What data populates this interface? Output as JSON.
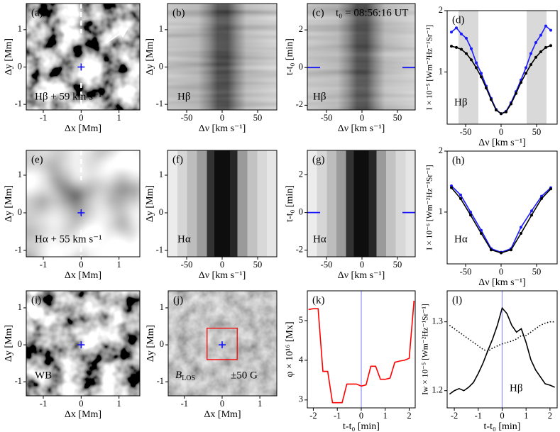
{
  "chart_data": [
    {
      "type": "image",
      "image": "granulation",
      "label": "(a)",
      "xlabel": "Δx [Mm]",
      "ylabel": "Δy [Mm]",
      "xlim": [
        -1.45,
        1.55
      ],
      "ylim": [
        -1.15,
        1.7
      ],
      "xticks": [
        -1,
        0,
        1
      ],
      "yticks": [
        -1,
        0,
        1
      ],
      "annotations": [
        "Hβ + 59 km s⁻¹"
      ],
      "marker": [
        0,
        0
      ],
      "guide": true,
      "arrow": true
    },
    {
      "type": "image",
      "image": "spectrum_hb",
      "label": "(b)",
      "xlabel": "Δν [km s⁻¹]",
      "ylabel": "Δy [Mm]",
      "xlim": [
        -77,
        77
      ],
      "ylim": [
        -1.15,
        1.7
      ],
      "xticks": [
        -50,
        0,
        50
      ],
      "yticks": [
        -1,
        0,
        1
      ],
      "annotations": [
        "Hβ"
      ]
    },
    {
      "type": "image",
      "image": "spectrum_hb",
      "label": "(c)",
      "xlabel": "Δν [km s⁻¹]",
      "ylabel": "t-t₀ [min]",
      "xlim": [
        -77,
        75
      ],
      "ylim": [
        -2.25,
        3.4
      ],
      "xticks": [
        -50,
        0,
        50
      ],
      "yticks": [
        -2,
        0,
        2
      ],
      "annotations": [
        "t₀ = 08:56:16 UT",
        "Hβ"
      ],
      "tmark": 0
    },
    {
      "type": "line",
      "label": "(d)",
      "xlabel": "Δν [km s⁻¹]",
      "ylabel": "I × 10⁻⁵ [Wm⁻²Hz⁻¹Sr⁻¹]",
      "xlim": [
        -76,
        79
      ],
      "ylim": [
        0.15,
        2.0
      ],
      "xticks": [
        -50,
        0,
        50
      ],
      "yticks": [
        1,
        2
      ],
      "annotations": [
        "Hβ"
      ],
      "spans": [
        [
          -60,
          -32
        ],
        [
          36,
          64
        ]
      ],
      "markers": true,
      "x": [
        -70,
        -63,
        -56,
        -49,
        -42,
        -35,
        -28,
        -21,
        -14,
        -7,
        0,
        7,
        14,
        21,
        28,
        35,
        42,
        49,
        56,
        63,
        70
      ],
      "series": [
        {
          "color": "#1a1aff",
          "values": [
            1.65,
            1.72,
            1.62,
            1.55,
            1.38,
            1.15,
            0.98,
            0.77,
            0.57,
            0.39,
            0.32,
            0.36,
            0.5,
            0.68,
            0.87,
            1.07,
            1.3,
            1.48,
            1.6,
            1.75,
            1.68
          ]
        },
        {
          "color": "#000000",
          "values": [
            1.42,
            1.4,
            1.37,
            1.3,
            1.2,
            1.07,
            0.92,
            0.74,
            0.55,
            0.38,
            0.32,
            0.35,
            0.48,
            0.65,
            0.83,
            0.98,
            1.12,
            1.24,
            1.33,
            1.4,
            1.43
          ]
        }
      ]
    },
    {
      "type": "image",
      "image": "smooth",
      "label": "(e)",
      "xlabel": "Δx [Mm]",
      "ylabel": "Δy [Mm]",
      "xlim": [
        -1.45,
        1.55
      ],
      "ylim": [
        -1.17,
        1.66
      ],
      "xticks": [
        -1,
        0,
        1
      ],
      "yticks": [
        -1,
        0,
        1
      ],
      "annotations": [
        "Hα + 55 km s⁻¹"
      ],
      "marker": [
        0,
        0
      ],
      "guide": true
    },
    {
      "type": "image",
      "image": "spectrum_ha",
      "label": "(f)",
      "xlabel": "Δν [km s⁻¹]",
      "ylabel": "Δy [Mm]",
      "xlim": [
        -77,
        77
      ],
      "ylim": [
        -1.17,
        1.66
      ],
      "xticks": [
        -50,
        0,
        50
      ],
      "yticks": [
        -1,
        0,
        1
      ],
      "annotations": [
        "Hα"
      ]
    },
    {
      "type": "image",
      "image": "spectrum_ha",
      "label": "(g)",
      "xlabel": "Δν [km s⁻¹]",
      "ylabel": "t-t₀ [min]",
      "xlim": [
        -77,
        75
      ],
      "ylim": [
        -2.35,
        3.3
      ],
      "xticks": [
        -50,
        0,
        50
      ],
      "yticks": [
        -2,
        0,
        2
      ],
      "annotations": [
        "Hα"
      ],
      "tmark": 0
    },
    {
      "type": "line",
      "label": "(h)",
      "xlabel": "Δν [km s⁻¹]",
      "ylabel": "I × 10⁻⁶ [Wm⁻²Hz⁻¹Sr⁻¹]",
      "xlim": [
        -76,
        79
      ],
      "ylim": [
        0.15,
        2.0
      ],
      "xticks": [
        -50,
        0,
        50
      ],
      "yticks": [
        1,
        2
      ],
      "annotations": [
        "Hα"
      ],
      "markers": true,
      "x": [
        -70,
        -57,
        -43,
        -28,
        -14,
        0,
        14,
        28,
        43,
        57,
        70
      ],
      "series": [
        {
          "color": "#1a1aff",
          "values": [
            1.43,
            1.28,
            1.0,
            0.7,
            0.4,
            0.34,
            0.4,
            0.75,
            1.02,
            1.26,
            1.4
          ]
        },
        {
          "color": "#000000",
          "values": [
            1.4,
            1.22,
            0.95,
            0.65,
            0.38,
            0.33,
            0.38,
            0.65,
            0.95,
            1.22,
            1.38
          ]
        }
      ]
    },
    {
      "type": "image",
      "image": "granulation",
      "label": "(i)",
      "xlabel": "Δx [Mm]",
      "ylabel": "Δy [Mm]",
      "xlim": [
        -1.45,
        1.55
      ],
      "ylim": [
        -1.38,
        1.46
      ],
      "xticks": [
        -1,
        0,
        1
      ],
      "yticks": [
        -1,
        0,
        1
      ],
      "annotations": [
        "WB"
      ],
      "marker": [
        0,
        0
      ]
    },
    {
      "type": "image",
      "image": "magnetogram",
      "label": "(j)",
      "xlabel": "Δx [Mm]",
      "ylabel": "Δy [Mm]",
      "xlim": [
        -1.43,
        1.45
      ],
      "ylim": [
        -1.38,
        1.46
      ],
      "xticks": [
        -1,
        0,
        1
      ],
      "yticks": [
        -1,
        0,
        1
      ],
      "annotations": [
        {
          "text": "B",
          "sub": "LOS"
        },
        "±50 G"
      ],
      "marker": [
        0,
        0
      ],
      "box": {
        "x": [
          -0.4,
          0.4
        ],
        "y": [
          -0.4,
          0.45
        ]
      }
    },
    {
      "type": "line",
      "label": "(k)",
      "xlabel": "t-t₀ [min]",
      "ylabel": "φ × 10¹⁶ [Mx]",
      "xlim": [
        -2.25,
        2.25
      ],
      "ylim": [
        2.8,
        5.75
      ],
      "xticks": [
        -2,
        -1,
        0,
        1,
        2
      ],
      "yticks": [
        3,
        4,
        5
      ],
      "vline": 0,
      "vline_color": "#8f8fff",
      "x": [
        -2.2,
        -2.0,
        -1.8,
        -1.6,
        -1.4,
        -1.2,
        -1.0,
        -0.8,
        -0.6,
        -0.4,
        -0.2,
        0,
        0.2,
        0.4,
        0.6,
        0.8,
        1.0,
        1.2,
        1.4,
        1.6,
        1.8,
        2.0,
        2.2
      ],
      "series": [
        {
          "color": "#ff0000",
          "values": [
            5.28,
            5.3,
            5.3,
            3.72,
            3.72,
            2.93,
            2.93,
            2.93,
            3.4,
            3.4,
            3.4,
            3.35,
            3.38,
            3.85,
            3.85,
            3.52,
            3.52,
            3.55,
            3.95,
            3.98,
            4.0,
            4.05,
            5.5
          ]
        }
      ]
    },
    {
      "type": "line",
      "label": "(l)",
      "xlabel": "t-t₀ [min]",
      "ylabel": "Iw × 10⁻⁵ [Wm⁻²Hz⁻¹Sr⁻¹]",
      "xlim": [
        -2.3,
        2.3
      ],
      "ylim": [
        1.175,
        1.345
      ],
      "xticks": [
        -2,
        -1,
        0,
        1,
        2
      ],
      "yticks": [
        1.2,
        1.3
      ],
      "annotations": [
        "Hβ"
      ],
      "vline": 0,
      "vline_color": "#8f8fff",
      "x": [
        -2.2,
        -2.0,
        -1.8,
        -1.6,
        -1.4,
        -1.2,
        -1.0,
        -0.8,
        -0.6,
        -0.4,
        -0.2,
        0,
        0.2,
        0.4,
        0.6,
        0.8,
        1.0,
        1.2,
        1.4,
        1.6,
        1.8,
        2.0,
        2.2
      ],
      "series": [
        {
          "color": "#000000",
          "values": [
            1.195,
            1.2,
            1.203,
            1.2,
            1.205,
            1.212,
            1.225,
            1.24,
            1.258,
            1.275,
            1.295,
            1.32,
            1.312,
            1.295,
            1.285,
            1.29,
            1.27,
            1.245,
            1.23,
            1.22,
            1.21,
            1.208,
            1.205
          ]
        },
        {
          "color": "#000000",
          "linestyle": "dotted",
          "values": [
            1.295,
            1.29,
            1.285,
            1.28,
            1.275,
            1.27,
            1.265,
            1.26,
            1.257,
            1.262,
            1.265,
            1.268,
            1.27,
            1.272,
            1.275,
            1.28,
            1.28,
            1.285,
            1.29,
            1.295,
            1.298,
            1.3,
            1.3
          ]
        }
      ]
    }
  ]
}
